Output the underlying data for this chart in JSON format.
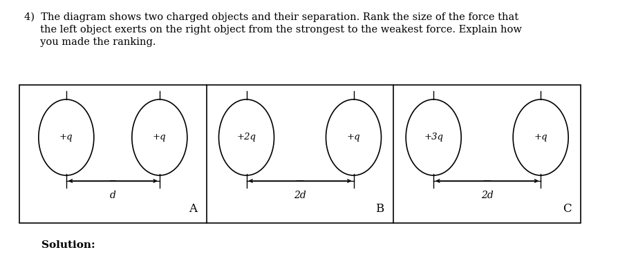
{
  "bg_color": "#ffffff",
  "title_line1": "4)  The diagram shows two charged objects and their separation. Rank the size of the force that",
  "title_line2": "     the left object exerts on the right object from the strongest to the weakest force. Explain how",
  "title_line3": "     you made the ranking.",
  "solution_text": "Solution:",
  "panels": [
    {
      "label": "A",
      "left_charge": "+q",
      "right_charge": "+q",
      "distance_label": "d"
    },
    {
      "label": "B",
      "left_charge": "+2q",
      "right_charge": "+q",
      "distance_label": "2d"
    },
    {
      "label": "C",
      "left_charge": "+3q",
      "right_charge": "+q",
      "distance_label": "2d"
    }
  ],
  "title_fontsize": 10.5,
  "charge_fontsize": 9.5,
  "label_fontsize": 12,
  "dist_fontsize": 10,
  "solution_fontsize": 11
}
